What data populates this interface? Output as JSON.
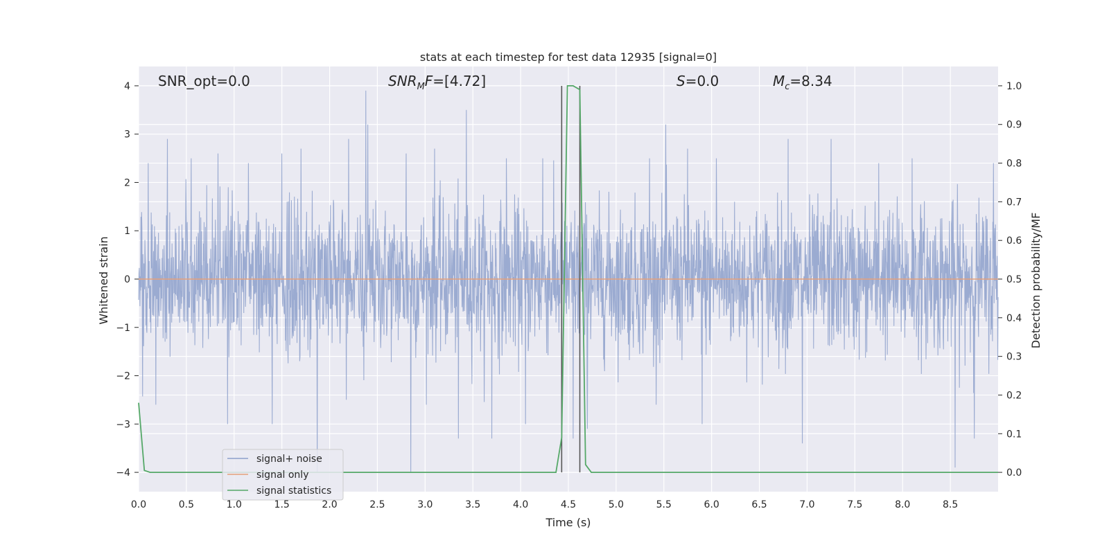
{
  "chart_data": {
    "type": "line",
    "title": "stats at each timestep for test data 12935 [signal=0]",
    "xlabel": "Time (s)",
    "ylabel": "Whitened strain",
    "y2label": "Detection probability/MF",
    "xlim": [
      0.0,
      9.0
    ],
    "ylim": [
      -4.4,
      4.4
    ],
    "y2lim": [
      -0.05,
      1.05
    ],
    "xticks": [
      "0.0",
      "0.5",
      "1.0",
      "1.5",
      "2.0",
      "2.5",
      "3.0",
      "3.5",
      "4.0",
      "4.5",
      "5.0",
      "5.5",
      "6.0",
      "6.5",
      "7.0",
      "7.5",
      "8.0",
      "8.5"
    ],
    "yticks": [
      "−4",
      "−3",
      "−2",
      "−1",
      "0",
      "1",
      "2",
      "3",
      "4"
    ],
    "y2ticks": [
      "0.0",
      "0.1",
      "0.2",
      "0.3",
      "0.4",
      "0.5",
      "0.6",
      "0.7",
      "0.8",
      "0.9",
      "1.0"
    ],
    "grid": true,
    "legend_placement": "lower-left",
    "annotations": {
      "snr_opt": "SNR_opt=0.0",
      "snr_mf_italic": "SNR",
      "snr_mf_sub": "M",
      "snr_mf_tail_italic": "F",
      "snr_mf_value": "=[4.72]",
      "s_italic": "S",
      "s_value": "=0.0",
      "mc_italic": "M",
      "mc_sub": "c",
      "mc_value": "=8.34"
    },
    "vlines": [
      4.43,
      4.62
    ],
    "series": [
      {
        "name": "signal+ noise",
        "color": "#8da0cb",
        "kind": "noise",
        "envelope_typical": 1.5,
        "peaks": [
          [
            0.1,
            2.4
          ],
          [
            0.3,
            2.9
          ],
          [
            0.55,
            2.5
          ],
          [
            0.83,
            2.6
          ],
          [
            0.93,
            -3.0
          ],
          [
            1.15,
            2.4
          ],
          [
            1.4,
            -3.0
          ],
          [
            1.5,
            2.6
          ],
          [
            1.7,
            2.7
          ],
          [
            1.87,
            -4.0
          ],
          [
            2.2,
            2.9
          ],
          [
            2.38,
            3.9
          ],
          [
            2.4,
            3.2
          ],
          [
            2.8,
            2.6
          ],
          [
            2.85,
            -4.0
          ],
          [
            3.1,
            2.7
          ],
          [
            3.35,
            -3.3
          ],
          [
            3.43,
            3.5
          ],
          [
            3.7,
            -3.3
          ],
          [
            3.85,
            2.5
          ],
          [
            4.05,
            -3.0
          ],
          [
            4.23,
            2.5
          ],
          [
            4.55,
            -3.3
          ],
          [
            4.7,
            -3.1
          ],
          [
            5.35,
            2.5
          ],
          [
            5.52,
            3.2
          ],
          [
            5.75,
            2.7
          ],
          [
            5.9,
            -3.0
          ],
          [
            6.05,
            2.5
          ],
          [
            6.8,
            2.9
          ],
          [
            6.95,
            -3.4
          ],
          [
            7.25,
            2.9
          ],
          [
            7.75,
            2.4
          ],
          [
            8.1,
            2.5
          ],
          [
            8.55,
            -3.9
          ],
          [
            8.75,
            -3.3
          ],
          [
            8.95,
            2.4
          ]
        ]
      },
      {
        "name": "signal only",
        "color": "#e5a07a",
        "x": [
          0.0,
          9.0
        ],
        "y": [
          0.0,
          0.0
        ]
      },
      {
        "name": "signal statistics",
        "color": "#55a868",
        "axis": "right",
        "x": [
          0.0,
          0.06,
          0.12,
          4.37,
          4.43,
          4.49,
          4.55,
          4.62,
          4.68,
          4.74,
          9.0
        ],
        "y": [
          0.18,
          0.005,
          0.0,
          0.0,
          0.09,
          1.0,
          1.0,
          0.99,
          0.02,
          0.0,
          0.0
        ]
      }
    ]
  }
}
